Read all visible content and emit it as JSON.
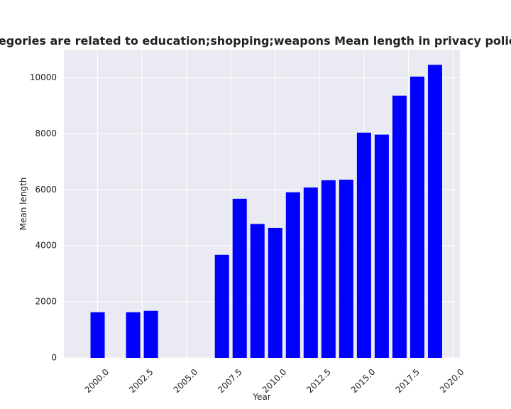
{
  "chart_data": {
    "type": "bar",
    "title": "When categories are related to education;shopping;weapons Mean length in privacy policies by Year",
    "xlabel": "Year",
    "ylabel": "Mean length",
    "x": [
      2000,
      2002,
      2003,
      2007,
      2008,
      2009,
      2010,
      2011,
      2012,
      2013,
      2014,
      2015,
      2016,
      2017,
      2018,
      2019
    ],
    "values": [
      1630,
      1630,
      1680,
      3680,
      5680,
      4780,
      4640,
      5910,
      6080,
      6340,
      6360,
      8040,
      7970,
      9360,
      10040,
      10460
    ],
    "xlim": [
      1998.1,
      2020.4
    ],
    "ylim": [
      0,
      11000
    ],
    "xticks": [
      2000.0,
      2002.5,
      2005.0,
      2007.5,
      2010.0,
      2012.5,
      2015.0,
      2017.5,
      2020.0
    ],
    "xtick_labels": [
      "2000.0",
      "2002.5",
      "2005.0",
      "2007.5",
      "2010.0",
      "2012.5",
      "2015.0",
      "2017.5",
      "2020.0"
    ],
    "yticks": [
      0,
      2000,
      4000,
      6000,
      8000,
      10000
    ],
    "ytick_labels": [
      "0",
      "2000",
      "4000",
      "6000",
      "8000",
      "10000"
    ],
    "bar_color": "#0000ff",
    "plot_background": "#eaeaf2",
    "grid_color": "#ffffff",
    "grid": true,
    "legend": false
  }
}
